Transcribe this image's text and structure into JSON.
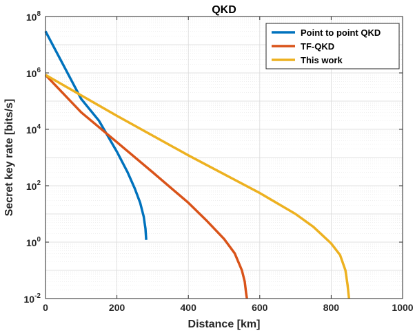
{
  "chart_data": {
    "type": "line",
    "title": "QKD",
    "xlabel": "Distance [km]",
    "ylabel": "Secret key rate [bits/s]",
    "xlim": [
      0,
      1000
    ],
    "ylim": [
      0.01,
      100000000
    ],
    "yscale": "log",
    "grid": true,
    "minor_grid": true,
    "legend_position": "top-right",
    "x_ticks": [
      {
        "value": 0,
        "label": "0"
      },
      {
        "value": 200,
        "label": "200"
      },
      {
        "value": 400,
        "label": "400"
      },
      {
        "value": 600,
        "label": "600"
      },
      {
        "value": 800,
        "label": "800"
      },
      {
        "value": 1000,
        "label": "1000"
      }
    ],
    "y_ticks": [
      {
        "value": 0.01,
        "base": "10",
        "exp": "-2"
      },
      {
        "value": 1,
        "base": "10",
        "exp": "0"
      },
      {
        "value": 100,
        "base": "10",
        "exp": "2"
      },
      {
        "value": 10000,
        "base": "10",
        "exp": "4"
      },
      {
        "value": 1000000,
        "base": "10",
        "exp": "6"
      },
      {
        "value": 100000000,
        "base": "10",
        "exp": "8"
      }
    ],
    "series": [
      {
        "name": "Point to point QKD",
        "color": "#0072BD",
        "x": [
          0,
          50,
          100,
          150,
          200,
          230,
          250,
          265,
          275,
          280,
          282
        ],
        "y": [
          30000000,
          1900000,
          120000,
          20000,
          1600,
          300,
          80,
          25,
          8,
          3,
          1.2
        ]
      },
      {
        "name": "TF-QKD",
        "color": "#D95319",
        "x": [
          0,
          100,
          200,
          300,
          400,
          450,
          500,
          530,
          550,
          558,
          562,
          564
        ],
        "y": [
          850000,
          40000,
          3500,
          300,
          25,
          6,
          1.3,
          0.4,
          0.1,
          0.04,
          0.015,
          0.01
        ],
        "drop_to_min": true
      },
      {
        "name": "This work",
        "color": "#EDB120",
        "x": [
          0,
          200,
          400,
          600,
          700,
          750,
          800,
          825,
          840,
          846,
          850
        ],
        "y": [
          850000,
          30000,
          1200,
          55,
          10,
          3.5,
          0.9,
          0.35,
          0.1,
          0.03,
          0.01
        ],
        "drop_to_min": true
      }
    ]
  }
}
